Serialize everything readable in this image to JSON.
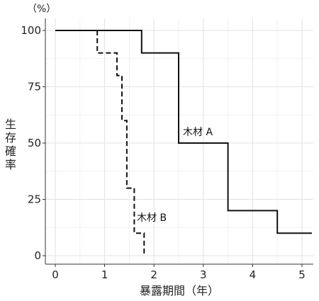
{
  "chart_data": {
    "type": "line",
    "step": true,
    "ylabel": "生存確率",
    "yunit": "（%）",
    "xlabel": "暴露期間（年）",
    "xlim": [
      0,
      5.2
    ],
    "ylim": [
      0,
      100
    ],
    "xticks": [
      0,
      1,
      2,
      3,
      4,
      5
    ],
    "yticks": [
      0,
      25,
      50,
      75,
      100
    ],
    "grid": true,
    "series": [
      {
        "name": "木材 A",
        "line_style": "solid",
        "points": [
          [
            0,
            100
          ],
          [
            1.75,
            100
          ],
          [
            1.75,
            90
          ],
          [
            2.5,
            90
          ],
          [
            2.5,
            50
          ],
          [
            3.5,
            50
          ],
          [
            3.5,
            20
          ],
          [
            4.5,
            20
          ],
          [
            4.5,
            10
          ],
          [
            5.2,
            10
          ]
        ]
      },
      {
        "name": "木材 B",
        "line_style": "dashed",
        "points": [
          [
            0.85,
            100
          ],
          [
            0.85,
            90
          ],
          [
            1.25,
            90
          ],
          [
            1.25,
            80
          ],
          [
            1.35,
            80
          ],
          [
            1.35,
            60
          ],
          [
            1.45,
            60
          ],
          [
            1.45,
            30
          ],
          [
            1.6,
            30
          ],
          [
            1.6,
            10
          ],
          [
            1.8,
            10
          ],
          [
            1.8,
            0
          ]
        ]
      }
    ]
  }
}
